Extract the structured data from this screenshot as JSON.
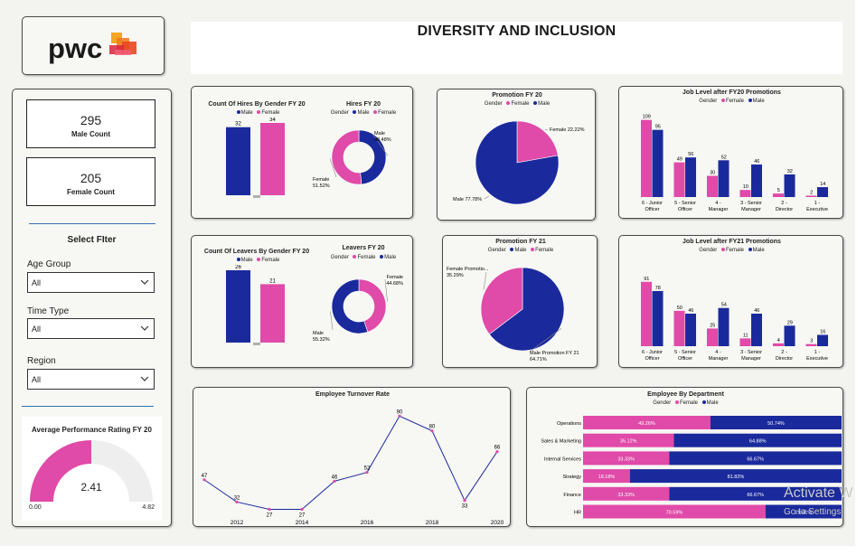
{
  "colors": {
    "male": "#1a2a9c",
    "female": "#e04aa8",
    "gauge_track": "#eeeeee"
  },
  "header": {
    "title": "DIVERSITY AND INCLUSION",
    "logo_text": "pwc"
  },
  "sidebar": {
    "male_count": "295",
    "male_label": "Male Count",
    "female_count": "205",
    "female_label": "Female Count",
    "filter_title": "Select FIter",
    "filters": [
      {
        "label": "Age Group",
        "value": "All"
      },
      {
        "label": "Time Type",
        "value": "All"
      },
      {
        "label": "Region",
        "value": "All"
      }
    ],
    "gauge": {
      "title": "Average Performance Rating FY 20",
      "value": 2.41,
      "value_label": "2.41",
      "min_label": "0.00",
      "max_label": "4.82",
      "min": 0,
      "max": 4.82
    }
  },
  "legend_text": {
    "gender": "Gender",
    "male": "Male",
    "female": "Female"
  },
  "chart_data": [
    {
      "id": "hires_bar",
      "type": "bar",
      "title": "Count Of Hires By Gender FY 20",
      "categories": [
        "Male",
        "Female"
      ],
      "values": [
        32,
        34
      ],
      "labels": [
        "32",
        "34"
      ]
    },
    {
      "id": "hires_donut",
      "type": "pie",
      "title": "Hires FY 20",
      "slices": [
        {
          "name": "Male",
          "value": 48.48,
          "label": "48.48%"
        },
        {
          "name": "Female",
          "value": 51.52,
          "label": "51.52%"
        }
      ]
    },
    {
      "id": "leavers_bar",
      "type": "bar",
      "title": "Count Of Leavers By Gender FY 20",
      "categories": [
        "Male",
        "Female"
      ],
      "values": [
        26,
        21
      ],
      "labels": [
        "26",
        "21"
      ]
    },
    {
      "id": "leavers_donut",
      "type": "pie",
      "title": "Leavers FY 20",
      "slices": [
        {
          "name": "Female",
          "value": 44.68,
          "label": "44.68%"
        },
        {
          "name": "Male",
          "value": 55.32,
          "label": "55.32%"
        }
      ]
    },
    {
      "id": "promo20",
      "type": "pie",
      "title": "Promotion FY 20",
      "slices": [
        {
          "name": "Female",
          "value": 22.22,
          "label": "Female 22.22%"
        },
        {
          "name": "Male",
          "value": 77.78,
          "label": "Male 77.78%"
        }
      ]
    },
    {
      "id": "promo21",
      "type": "pie",
      "title": "Promotion FY 21",
      "slices": [
        {
          "name": "Male",
          "value": 64.71,
          "label": "Male Promotion FY 21 64.71%"
        },
        {
          "name": "Female",
          "value": 35.29,
          "label": "Female Promotio... 35.29%"
        }
      ]
    },
    {
      "id": "job20",
      "type": "bar",
      "title": "Job Level after FY20 Promotions",
      "categories": [
        "6 - Junior Officer",
        "5 - Senior Officer",
        "4 - Manager",
        "3 - Senior Manager",
        "2 - Director",
        "1 - Executive"
      ],
      "series": [
        {
          "name": "Female",
          "values": [
            109,
            49,
            30,
            10,
            5,
            2
          ]
        },
        {
          "name": "Male",
          "values": [
            95,
            56,
            52,
            46,
            32,
            14
          ]
        }
      ]
    },
    {
      "id": "job21",
      "type": "bar",
      "title": "Job Level after FY21 Promotions",
      "categories": [
        "6 - Junior Officer",
        "5 - Senior Officer",
        "4 - Manager",
        "3 - Senior Manager",
        "2 - Director",
        "1 - Executive"
      ],
      "series": [
        {
          "name": "Female",
          "values": [
            91,
            50,
            25,
            11,
            4,
            3
          ]
        },
        {
          "name": "Male",
          "values": [
            78,
            46,
            54,
            46,
            29,
            16
          ]
        }
      ]
    },
    {
      "id": "turnover",
      "type": "line",
      "title": "Employee Turnover Rate",
      "x": [
        2011,
        2012,
        2013,
        2014,
        2015,
        2016,
        2017,
        2018,
        2019,
        2020
      ],
      "values": [
        47,
        32,
        27,
        27,
        46,
        52,
        90,
        80,
        33,
        66
      ],
      "xticks": [
        "2012",
        "2014",
        "2016",
        "2018",
        "2020"
      ]
    },
    {
      "id": "dept",
      "type": "bar",
      "title": "Employee By Department",
      "categories": [
        "Operations",
        "Sales & Marketing",
        "Internal Services",
        "Strategy",
        "Finance",
        "HR"
      ],
      "series": [
        {
          "name": "Female",
          "values": [
            49.26,
            35.12,
            33.33,
            18.18,
            33.33,
            70.59
          ],
          "labels": [
            "49.26%",
            "35.12%",
            "33.33%",
            "18.18%",
            "33.33%",
            "70.59%"
          ]
        },
        {
          "name": "Male",
          "values": [
            50.74,
            64.88,
            66.67,
            81.82,
            66.67,
            29.41
          ],
          "labels": [
            "50.74%",
            "64.88%",
            "66.67%",
            "81.82%",
            "66.67%",
            "29.41%"
          ]
        }
      ]
    }
  ],
  "watermark": {
    "line1": "Activate W",
    "line2": "Go to Settings"
  }
}
